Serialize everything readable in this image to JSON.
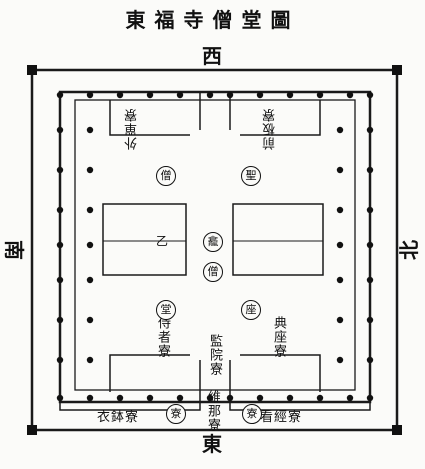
{
  "title": "東福寺僧堂圖",
  "directions": {
    "top": "西",
    "bottom": "東",
    "left": "南",
    "right": "北"
  },
  "rooms": {
    "upper_left": "外單寮",
    "upper_right": "前板寮",
    "middle_left": "監院寮",
    "middle_right": "維那寮",
    "lower_left": "侍者寮",
    "lower_right": "典座寮",
    "bottom_left": "衣鉢寮",
    "bottom_right": "看經寮"
  },
  "circles": {
    "upper_left": "僧",
    "upper_right": "聖",
    "center_top": "龕",
    "center_bottom": "僧",
    "lower_left": "堂",
    "lower_right": "座",
    "bottom_left": "寮",
    "bottom_right": "寮"
  },
  "annotations": {
    "center_mark": "乙"
  }
}
